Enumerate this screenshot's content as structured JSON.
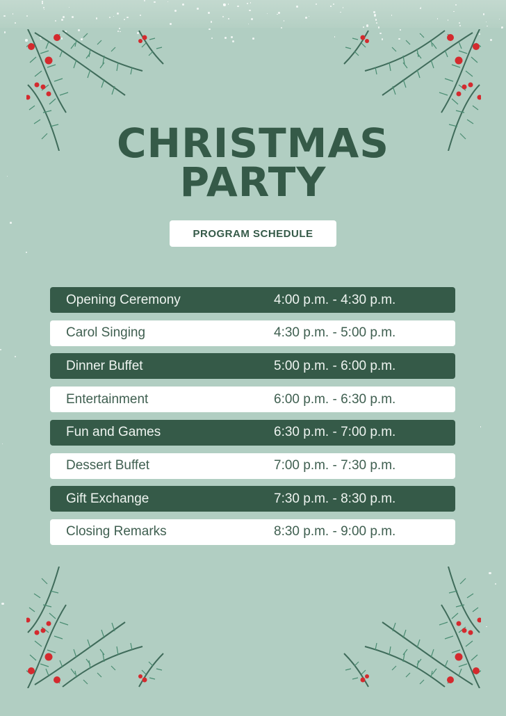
{
  "title_line1": "CHRISTMAS",
  "title_line2": "PARTY",
  "subtitle": "PROGRAM SCHEDULE",
  "colors": {
    "background": "#b1cec2",
    "dark_green": "#355a48",
    "berry_red": "#d42a2e",
    "branch_green": "#4a8c72"
  },
  "decorations": [
    "pine-branch-with-berries-top-left",
    "pine-branch-with-berries-top-right",
    "pine-branch-with-berries-bottom-left",
    "pine-branch-with-berries-bottom-right",
    "snow-speckles"
  ],
  "schedule": [
    {
      "event": "Opening Ceremony",
      "time": "4:00 p.m. - 4:30 p.m."
    },
    {
      "event": "Carol Singing",
      "time": "4:30 p.m. - 5:00 p.m."
    },
    {
      "event": "Dinner Buffet",
      "time": "5:00 p.m. - 6:00 p.m."
    },
    {
      "event": "Entertainment",
      "time": "6:00 p.m. - 6:30 p.m."
    },
    {
      "event": "Fun and Games",
      "time": "6:30 p.m. - 7:00 p.m."
    },
    {
      "event": "Dessert Buffet",
      "time": "7:00 p.m. - 7:30 p.m."
    },
    {
      "event": "Gift Exchange",
      "time": "7:30 p.m. - 8:30 p.m."
    },
    {
      "event": "Closing Remarks",
      "time": "8:30 p.m. - 9:00 p.m."
    }
  ]
}
